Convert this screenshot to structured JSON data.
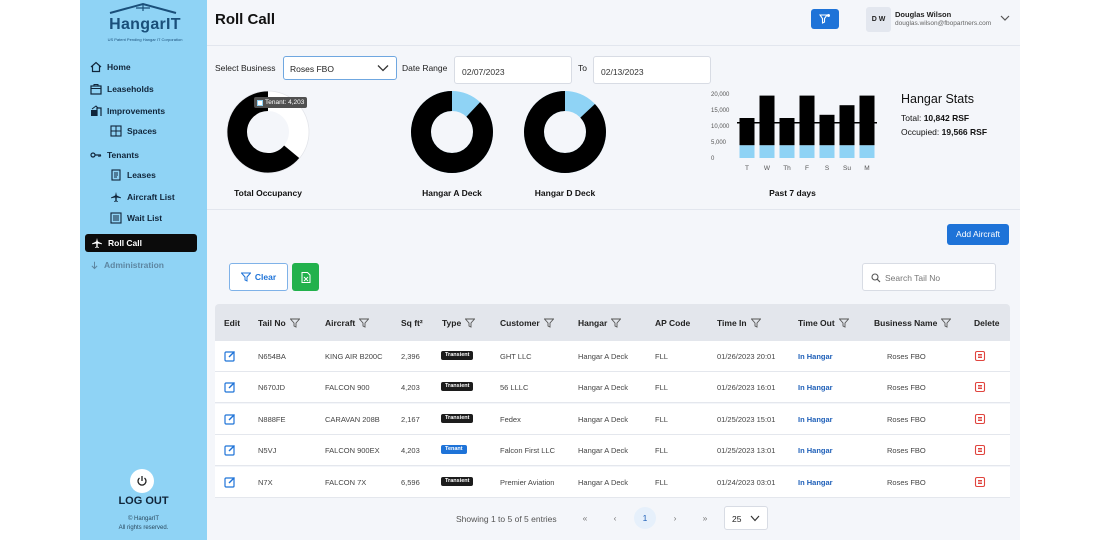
{
  "brand": {
    "name": "HangarIT",
    "tagline": "US Patent Pending Hangar IT Corporation"
  },
  "sidebar": {
    "items": [
      {
        "label": "Home",
        "icon": "home-icon"
      },
      {
        "label": "Leaseholds",
        "icon": "building-icon"
      },
      {
        "label": "Improvements",
        "icon": "improvements-icon"
      },
      {
        "label": "Spaces",
        "icon": "grid-icon"
      },
      {
        "label": "Tenants",
        "icon": "key-icon"
      },
      {
        "label": "Leases",
        "icon": "document-icon"
      },
      {
        "label": "Aircraft List",
        "icon": "airplane-icon"
      },
      {
        "label": "Wait List",
        "icon": "list-icon"
      },
      {
        "label": "Roll Call",
        "icon": "airplane-icon"
      },
      {
        "label": "Administration",
        "icon": "arrow-down-icon"
      }
    ],
    "logout_label": "LOG OUT",
    "copyright_line1": "© HangarIT",
    "copyright_line2": "All rights reserved."
  },
  "header": {
    "title": "Roll Call",
    "user_initials": "D W",
    "user_name": "Douglas Wilson",
    "user_email": "douglas.wilson@fbopartners.com"
  },
  "filters": {
    "business_label": "Select Business",
    "business_value": "Roses FBO",
    "date_range_label": "Date Range",
    "date_from": "02/07/2023",
    "to_label": "To",
    "date_to": "02/13/2023"
  },
  "charts": {
    "tooltip": "Tenant: 4,203",
    "donuts": [
      {
        "caption": "Total Occupancy",
        "occupied_fraction": 0.64
      },
      {
        "caption": "Hangar A Deck",
        "occupied_fraction": 0.88
      },
      {
        "caption": "Hangar D Deck",
        "occupied_fraction": 0.87
      }
    ],
    "colors": {
      "occupied": "#000000",
      "available": "#8fd3f5",
      "empty": "#ffffff"
    }
  },
  "chart_data": {
    "type": "bar",
    "title": "",
    "xlabel": "Past 7 days",
    "ylabel": "",
    "categories": [
      "T",
      "W",
      "Th",
      "F",
      "S",
      "Su",
      "M"
    ],
    "yticks": [
      "20,000",
      "15,000",
      "10,000",
      "5,000",
      "0"
    ],
    "ylim": [
      0,
      20000
    ],
    "series": [
      {
        "values": [
          4000,
          4000,
          4000,
          4000,
          4000,
          4000,
          4000
        ],
        "color": "#8fd3f5"
      },
      {
        "values": [
          8500,
          15500,
          8500,
          15500,
          9500,
          12500,
          15500
        ],
        "color": "#000000"
      }
    ],
    "reference_line": 11000
  },
  "stats": {
    "title": "Hangar Stats",
    "total_label": "Total:",
    "total_value": "10,842 RSF",
    "occupied_label": "Occupied:",
    "occupied_value": "19,566 RSF"
  },
  "actions": {
    "add_aircraft": "Add Aircraft",
    "clear": "Clear",
    "search_placeholder": "Search Tail No"
  },
  "table": {
    "columns": [
      "Edit",
      "Tail No",
      "Aircraft",
      "Sq ft²",
      "Type",
      "Customer",
      "Hangar",
      "AP Code",
      "Time In",
      "Time Out",
      "Business Name",
      "Delete"
    ],
    "rows": [
      {
        "tail": "N654BA",
        "aircraft": "KING AIR B200C",
        "sqft": "2,396",
        "type": "Transient",
        "customer": "GHT LLC",
        "hangar": "Hangar A Deck",
        "ap": "FLL",
        "time_in": "01/26/2023 20:01",
        "time_out": "In Hangar",
        "business": "Roses FBO"
      },
      {
        "tail": "N670JD",
        "aircraft": "FALCON 900",
        "sqft": "4,203",
        "type": "Transient",
        "customer": "56 LLLC",
        "hangar": "Hangar A Deck",
        "ap": "FLL",
        "time_in": "01/26/2023 16:01",
        "time_out": "In Hangar",
        "business": "Roses FBO"
      },
      {
        "tail": "N888FE",
        "aircraft": "CARAVAN 208B",
        "sqft": "2,167",
        "type": "Transient",
        "customer": "Fedex",
        "hangar": "Hangar A Deck",
        "ap": "FLL",
        "time_in": "01/25/2023 15:01",
        "time_out": "In Hangar",
        "business": "Roses FBO"
      },
      {
        "tail": "N5VJ",
        "aircraft": "FALCON 900EX",
        "sqft": "4,203",
        "type": "Tenant",
        "customer": "Falcon First LLC",
        "hangar": "Hangar A Deck",
        "ap": "FLL",
        "time_in": "01/25/2023 13:01",
        "time_out": "In Hangar",
        "business": "Roses FBO"
      },
      {
        "tail": "N7X",
        "aircraft": "FALCON 7X",
        "sqft": "6,596",
        "type": "Transient",
        "customer": "Premier Aviation",
        "hangar": "Hangar A Deck",
        "ap": "FLL",
        "time_in": "01/24/2023 03:01",
        "time_out": "In Hangar",
        "business": "Roses FBO"
      }
    ],
    "badge_colors": {
      "Transient": "#1c1c1c",
      "Tenant": "#1e73d8"
    }
  },
  "pager": {
    "info": "Showing 1 to 5 of 5 entries",
    "first": "«",
    "prev": "‹",
    "current": "1",
    "next": "›",
    "last": "»",
    "per_page": "25"
  }
}
